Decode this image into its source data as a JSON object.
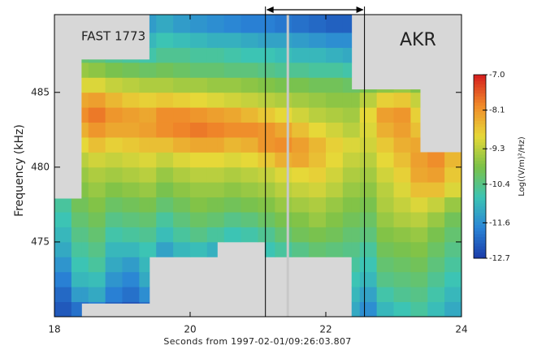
{
  "chart_data": {
    "type": "heatmap",
    "annotations": [
      "FAST 1773",
      "AKR"
    ],
    "xlabel": "Seconds from 1997-02-01/09:26:03.807",
    "ylabel": "Frequency  (kHz)",
    "xlim": [
      18,
      24
    ],
    "xticks": [
      18,
      20,
      22,
      24
    ],
    "ylim": [
      470,
      490.2
    ],
    "yticks": [
      475,
      480,
      485
    ],
    "background": "#d7d7d7",
    "marker_lines": [
      21.11,
      22.57
    ],
    "highlight_line": 21.44,
    "coverage": [
      {
        "x": [
          18.0,
          18.4
        ],
        "y": [
          470.0,
          477.9
        ]
      },
      {
        "x": [
          18.4,
          19.4
        ],
        "y": [
          470.9,
          487.2
        ]
      },
      {
        "x": [
          19.4,
          20.4
        ],
        "y": [
          474.0,
          490.2
        ]
      },
      {
        "x": [
          20.4,
          21.1
        ],
        "y": [
          475.0,
          490.2
        ]
      },
      {
        "x": [
          21.1,
          22.38
        ],
        "y": [
          474.0,
          490.2
        ]
      },
      {
        "x": [
          22.38,
          23.39
        ],
        "y": [
          470.0,
          485.2
        ]
      },
      {
        "x": [
          23.39,
          24.0
        ],
        "y": [
          470.0,
          481.0
        ]
      }
    ],
    "x": [
      18.0,
      18.25,
      18.5,
      18.75,
      19.0,
      19.25,
      19.5,
      19.75,
      20.0,
      20.25,
      20.5,
      20.75,
      21.0,
      21.25,
      21.5,
      21.75,
      22.0,
      22.25,
      22.5,
      22.75,
      23.0,
      23.25,
      23.5,
      23.75
    ],
    "y": [
      470,
      471,
      472,
      473,
      474,
      475,
      476,
      477,
      478,
      479,
      480,
      481,
      482,
      483,
      484,
      485,
      486,
      487,
      488,
      489
    ],
    "z": [
      [
        -12.3,
        -12.0,
        -11.8,
        -12.2,
        -12.4,
        -12.1,
        null,
        null,
        null,
        null,
        null,
        null,
        null,
        null,
        null,
        null,
        null,
        -11.2,
        -11.6,
        -11.0,
        -10.8,
        -10.6,
        -10.9,
        -11.2
      ],
      [
        -12.1,
        -11.4,
        -11.2,
        -11.8,
        -12.0,
        -11.6,
        null,
        null,
        null,
        null,
        null,
        null,
        null,
        null,
        null,
        null,
        null,
        -11.0,
        -11.3,
        -10.7,
        -10.5,
        -10.4,
        -10.7,
        -11.0
      ],
      [
        -11.8,
        -11.0,
        -10.9,
        -11.5,
        -11.7,
        -11.2,
        null,
        null,
        null,
        null,
        null,
        null,
        null,
        null,
        null,
        null,
        null,
        -10.8,
        -11.0,
        -10.4,
        -10.3,
        -10.2,
        -10.5,
        -10.8
      ],
      [
        -11.5,
        -10.8,
        -10.6,
        -11.2,
        -11.4,
        -11.0,
        null,
        null,
        null,
        null,
        null,
        null,
        null,
        null,
        null,
        null,
        null,
        -10.6,
        -10.8,
        -10.2,
        -10.1,
        -10.0,
        -10.3,
        -10.6
      ],
      [
        -11.2,
        -10.6,
        -10.4,
        -11.0,
        -11.0,
        -10.8,
        -11.3,
        -11.0,
        -10.9,
        -11.1,
        null,
        null,
        -10.8,
        -10.6,
        -10.4,
        -10.2,
        -10.3,
        -10.4,
        -10.6,
        -10.0,
        -9.9,
        -9.8,
        -10.1,
        -10.4
      ],
      [
        -11.0,
        -10.4,
        -10.2,
        -10.7,
        -10.6,
        -10.5,
        -10.9,
        -10.6,
        -10.4,
        -10.6,
        -10.8,
        -10.7,
        -10.5,
        -10.2,
        -10.0,
        -9.9,
        -10.0,
        -10.2,
        -10.3,
        -9.8,
        -9.7,
        -9.6,
        -9.9,
        -10.2
      ],
      [
        -10.8,
        -10.2,
        -10.0,
        -10.4,
        -10.3,
        -10.2,
        -10.6,
        -10.3,
        -10.1,
        -10.2,
        -10.4,
        -10.3,
        -10.1,
        -9.9,
        -9.8,
        -9.6,
        -9.8,
        -10.0,
        -10.1,
        -9.6,
        -9.4,
        -9.3,
        -9.6,
        -10.0
      ],
      [
        -10.6,
        -10.0,
        -9.8,
        -10.1,
        -10.0,
        -9.9,
        -10.2,
        -10.0,
        -9.8,
        -9.9,
        -10.0,
        -9.9,
        -9.8,
        -9.6,
        -9.5,
        -9.4,
        -9.6,
        -9.8,
        -9.9,
        -9.4,
        -9.2,
        -9.0,
        -9.2,
        -9.6
      ],
      [
        null,
        -9.8,
        -9.6,
        -9.8,
        -9.7,
        -9.6,
        -9.9,
        -9.7,
        -9.6,
        -9.6,
        -9.7,
        -9.6,
        -9.5,
        -9.3,
        -9.2,
        -9.1,
        -9.3,
        -9.6,
        -9.7,
        -9.3,
        -9.0,
        -8.6,
        -8.6,
        -9.0
      ],
      [
        null,
        -9.6,
        -9.4,
        -9.5,
        -9.4,
        -9.3,
        -9.6,
        -9.4,
        -9.3,
        -9.3,
        -9.4,
        -9.3,
        -9.2,
        -9.0,
        -8.9,
        -8.8,
        -9.1,
        -9.4,
        -9.5,
        -9.1,
        -8.8,
        -8.3,
        -8.2,
        -8.7
      ],
      [
        null,
        -9.3,
        -9.1,
        -9.2,
        -9.1,
        -9.0,
        -9.2,
        -9.0,
        -8.9,
        -8.9,
        -9.0,
        -8.9,
        -8.7,
        -8.4,
        -8.3,
        -8.6,
        -8.9,
        -9.2,
        -9.3,
        -8.9,
        -8.6,
        -8.2,
        -8.0,
        -8.5
      ],
      [
        null,
        -8.9,
        -8.6,
        -8.8,
        -8.7,
        -8.6,
        -8.6,
        -8.4,
        -8.3,
        -8.3,
        -8.5,
        -8.4,
        -8.1,
        -8.0,
        -8.2,
        -8.5,
        -8.8,
        -9.0,
        -9.1,
        -8.7,
        -8.4,
        -8.3,
        null,
        null
      ],
      [
        null,
        -8.4,
        -8.1,
        -8.3,
        -8.3,
        -8.2,
        -8.0,
        -7.9,
        -7.8,
        -7.9,
        -8.0,
        -8.0,
        -8.1,
        -8.3,
        -8.6,
        -8.9,
        -9.1,
        -9.3,
        -9.0,
        -8.4,
        -8.2,
        -8.6,
        null,
        null
      ],
      [
        null,
        -8.0,
        -7.8,
        -8.1,
        -8.2,
        -8.3,
        -8.0,
        -8.0,
        -8.1,
        -8.2,
        -8.3,
        -8.5,
        -8.7,
        -8.9,
        -9.1,
        -9.3,
        -9.4,
        -9.5,
        -8.9,
        -8.2,
        -8.1,
        -8.8,
        null,
        null
      ],
      [
        null,
        -8.3,
        -8.2,
        -8.5,
        -8.7,
        -8.8,
        -8.7,
        -8.8,
        -8.9,
        -9.0,
        -9.1,
        -9.2,
        -9.3,
        -9.4,
        -9.5,
        -9.6,
        -9.7,
        -9.7,
        -9.3,
        -8.8,
        -8.7,
        -9.2,
        null,
        null
      ],
      [
        null,
        -9.0,
        -9.0,
        -9.2,
        -9.3,
        -9.4,
        -9.4,
        -9.5,
        -9.5,
        -9.6,
        -9.6,
        -9.7,
        -9.8,
        -9.9,
        -9.9,
        -10.0,
        -10.0,
        -10.1,
        -9.9,
        -9.7,
        -9.6,
        -9.8,
        null,
        null
      ],
      [
        null,
        -9.6,
        -9.7,
        -9.9,
        -10.0,
        -10.1,
        -10.0,
        -10.1,
        -10.2,
        -10.2,
        -10.3,
        -10.3,
        -10.4,
        -10.5,
        -10.5,
        -10.6,
        -10.6,
        -10.7,
        null,
        null,
        null,
        null,
        null,
        null
      ],
      [
        null,
        -10.2,
        -10.3,
        -10.5,
        -10.6,
        -10.7,
        -10.5,
        -10.5,
        -10.6,
        -10.6,
        -10.7,
        -10.8,
        -10.8,
        -10.9,
        -11.0,
        -11.0,
        -11.1,
        -11.2,
        null,
        null,
        null,
        null,
        null,
        null
      ],
      [
        null,
        null,
        null,
        null,
        null,
        -11.0,
        -10.8,
        -10.9,
        -11.0,
        -11.1,
        -11.1,
        -11.2,
        -11.3,
        -11.3,
        -11.4,
        -11.5,
        -11.6,
        -11.6,
        null,
        null,
        null,
        null,
        null,
        null
      ],
      [
        null,
        null,
        null,
        null,
        null,
        -11.4,
        -11.2,
        -11.4,
        -11.5,
        -11.6,
        -11.7,
        -11.8,
        -11.8,
        -11.9,
        -12.0,
        -12.1,
        -12.2,
        -12.2,
        null,
        null,
        null,
        null,
        null,
        null
      ]
    ],
    "colorbar": {
      "label": "Log((V/m)²/Hz)",
      "lim": [
        -12.7,
        -7.0
      ],
      "ticks": [
        {
          "value": -7.0,
          "label": "-7.0"
        },
        -8.1,
        -9.3,
        -10.4,
        -11.6,
        -12.7
      ],
      "colors": [
        "#1a3aa8",
        "#2a84d6",
        "#3cc4b4",
        "#7cc248",
        "#e6d838",
        "#f08a2a",
        "#d61e1e"
      ]
    }
  }
}
